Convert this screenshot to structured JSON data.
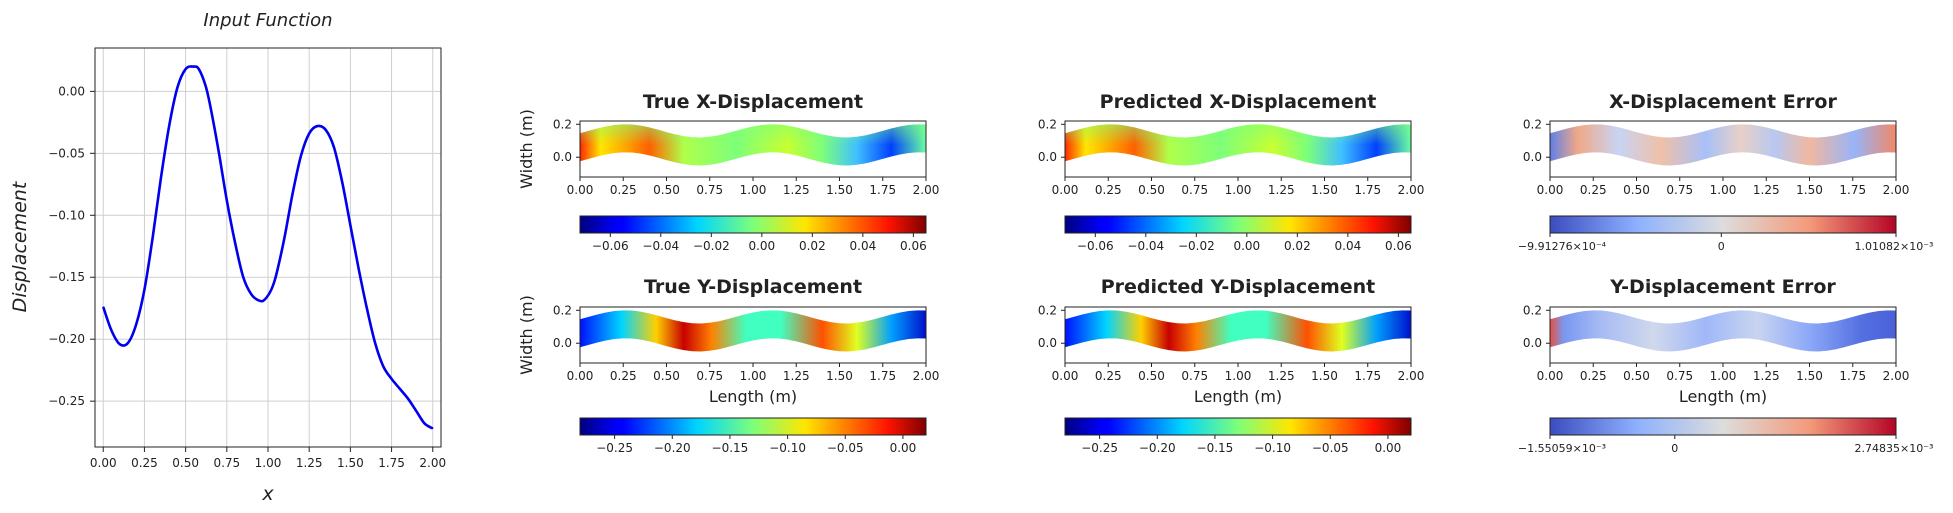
{
  "chart_data": [
    {
      "type": "line",
      "title": "Input Function",
      "xlabel": "x",
      "ylabel": "Displacement",
      "xlim": [
        -0.05,
        2.05
      ],
      "ylim": [
        -0.287,
        0.035
      ],
      "xticks": [
        0.0,
        0.25,
        0.5,
        0.75,
        1.0,
        1.25,
        1.5,
        1.75,
        2.0
      ],
      "xtick_labels": [
        "0.00",
        "0.25",
        "0.50",
        "0.75",
        "1.00",
        "1.25",
        "1.50",
        "1.75",
        "2.00"
      ],
      "yticks": [
        0.0,
        -0.05,
        -0.1,
        -0.15,
        -0.2,
        -0.25
      ],
      "ytick_labels": [
        "0.00",
        "−0.05",
        "−0.10",
        "−0.15",
        "−0.20",
        "−0.25"
      ],
      "grid": true,
      "color": "#0000ee",
      "x": [
        0.0,
        0.05,
        0.1,
        0.15,
        0.2,
        0.25,
        0.3,
        0.35,
        0.4,
        0.45,
        0.5,
        0.55,
        0.58,
        0.62,
        0.65,
        0.7,
        0.75,
        0.8,
        0.85,
        0.9,
        0.95,
        0.98,
        1.02,
        1.05,
        1.1,
        1.15,
        1.2,
        1.25,
        1.3,
        1.35,
        1.4,
        1.45,
        1.5,
        1.55,
        1.6,
        1.65,
        1.7,
        1.75,
        1.8,
        1.85,
        1.9,
        1.95,
        2.0
      ],
      "y": [
        -0.174,
        -0.193,
        -0.204,
        -0.203,
        -0.188,
        -0.16,
        -0.118,
        -0.07,
        -0.028,
        0.003,
        0.018,
        0.02,
        0.018,
        0.005,
        -0.012,
        -0.048,
        -0.088,
        -0.122,
        -0.15,
        -0.164,
        -0.169,
        -0.168,
        -0.16,
        -0.148,
        -0.118,
        -0.082,
        -0.052,
        -0.034,
        -0.028,
        -0.031,
        -0.045,
        -0.073,
        -0.108,
        -0.143,
        -0.175,
        -0.203,
        -0.222,
        -0.232,
        -0.24,
        -0.248,
        -0.258,
        -0.268,
        -0.272
      ]
    },
    {
      "type": "heatmap",
      "title": "True X-Displacement",
      "ylabel": "Width (m)",
      "xlabel": "",
      "xlim": [
        0,
        2
      ],
      "ylim": [
        -0.12,
        0.22
      ],
      "xtick_labels": [
        "0.00",
        "0.25",
        "0.50",
        "0.75",
        "1.00",
        "1.25",
        "1.50",
        "1.75",
        "2.00"
      ],
      "ytick_labels": [
        "0.2",
        "0.0"
      ],
      "colormap": "jet",
      "colorbar_range": [
        -0.072,
        0.065
      ],
      "colorbar_ticks": [
        -0.06,
        -0.04,
        -0.02,
        0.0,
        0.02,
        0.04,
        0.06
      ],
      "colorbar_labels": [
        "−0.06",
        "−0.04",
        "−0.02",
        "0.00",
        "0.02",
        "0.04",
        "0.06"
      ]
    },
    {
      "type": "heatmap",
      "title": "Predicted X-Displacement",
      "xlim": [
        0,
        2
      ],
      "xtick_labels": [
        "0.00",
        "0.25",
        "0.50",
        "0.75",
        "1.00",
        "1.25",
        "1.50",
        "1.75",
        "2.00"
      ],
      "ytick_labels": [
        "0.2",
        "0.0"
      ],
      "colormap": "jet",
      "colorbar_range": [
        -0.072,
        0.065
      ],
      "colorbar_labels": [
        "−0.06",
        "−0.04",
        "−0.02",
        "0.00",
        "0.02",
        "0.04",
        "0.06"
      ]
    },
    {
      "type": "heatmap",
      "title": "X-Displacement Error",
      "xlim": [
        0,
        2
      ],
      "xtick_labels": [
        "0.00",
        "0.25",
        "0.50",
        "0.75",
        "1.00",
        "1.25",
        "1.50",
        "1.75",
        "2.00"
      ],
      "ytick_labels": [
        "0.2",
        "0.0"
      ],
      "colormap": "coolwarm",
      "colorbar_range": [
        -0.000991276,
        0.00101082
      ],
      "colorbar_labels": [
        "−9.91276×10⁻⁴",
        "0",
        "1.01082×10⁻³"
      ]
    },
    {
      "type": "heatmap",
      "title": "True Y-Displacement",
      "ylabel": "Width (m)",
      "xlabel": "Length (m)",
      "xlim": [
        0,
        2
      ],
      "xtick_labels": [
        "0.00",
        "0.25",
        "0.50",
        "0.75",
        "1.00",
        "1.25",
        "1.50",
        "1.75",
        "2.00"
      ],
      "ytick_labels": [
        "0.2",
        "0.0"
      ],
      "colormap": "jet",
      "colorbar_range": [
        -0.28,
        0.02
      ],
      "colorbar_ticks": [
        -0.25,
        -0.2,
        -0.15,
        -0.1,
        -0.05,
        0.0
      ],
      "colorbar_labels": [
        "−0.25",
        "−0.20",
        "−0.15",
        "−0.10",
        "−0.05",
        "0.00"
      ]
    },
    {
      "type": "heatmap",
      "title": "Predicted Y-Displacement",
      "xlabel": "Length (m)",
      "xlim": [
        0,
        2
      ],
      "xtick_labels": [
        "0.00",
        "0.25",
        "0.50",
        "0.75",
        "1.00",
        "1.25",
        "1.50",
        "1.75",
        "2.00"
      ],
      "ytick_labels": [
        "0.2",
        "0.0"
      ],
      "colormap": "jet",
      "colorbar_range": [
        -0.28,
        0.02
      ],
      "colorbar_labels": [
        "−0.25",
        "−0.20",
        "−0.15",
        "−0.10",
        "−0.05",
        "0.00"
      ]
    },
    {
      "type": "heatmap",
      "title": "Y-Displacement Error",
      "xlabel": "Length (m)",
      "xlim": [
        0,
        2
      ],
      "xtick_labels": [
        "0.00",
        "0.25",
        "0.50",
        "0.75",
        "1.00",
        "1.25",
        "1.50",
        "1.75",
        "2.00"
      ],
      "ytick_labels": [
        "0.2",
        "0.0"
      ],
      "colormap": "coolwarm",
      "colorbar_range": [
        -0.00155059,
        0.00274835
      ],
      "colorbar_labels": [
        "−1.55059×10⁻³",
        "0",
        "2.74835×10⁻³"
      ]
    }
  ]
}
